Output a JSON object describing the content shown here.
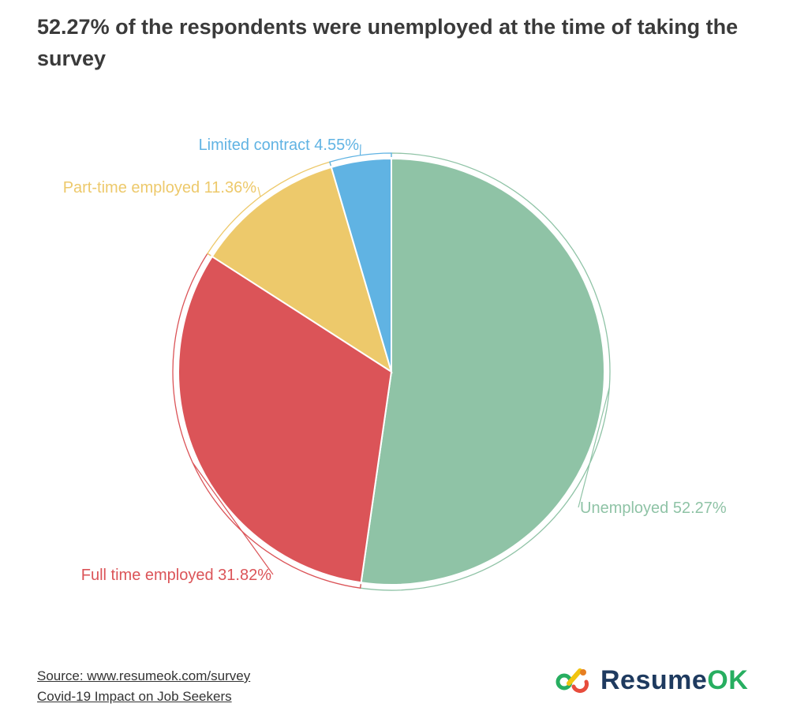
{
  "title": "52.27% of the respondents were unemployed at the time of taking the survey",
  "chart_data": {
    "type": "pie",
    "title": "52.27% of the respondents were unemployed at the time of taking the survey",
    "slices": [
      {
        "label": "Unemployed",
        "value": 52.27,
        "display": "Unemployed 52.27%",
        "color": "#8fc3a6"
      },
      {
        "label": "Full time employed",
        "value": 31.82,
        "display": "Full time employed 31.82%",
        "color": "#db5458"
      },
      {
        "label": "Part-time employed",
        "value": 11.36,
        "display": "Part-time employed 11.36%",
        "color": "#edc96b"
      },
      {
        "label": "Limited contract",
        "value": 4.55,
        "display": "Limited contract 4.55%",
        "color": "#60b3e3"
      }
    ]
  },
  "footer": {
    "source": "Source: www.resumeok.com/survey",
    "subtitle": "Covid-19 Impact on Job Seekers"
  },
  "brand": {
    "name_part1": "Resume",
    "name_part2": "OK",
    "icon": "resumeok-logo-icon"
  }
}
